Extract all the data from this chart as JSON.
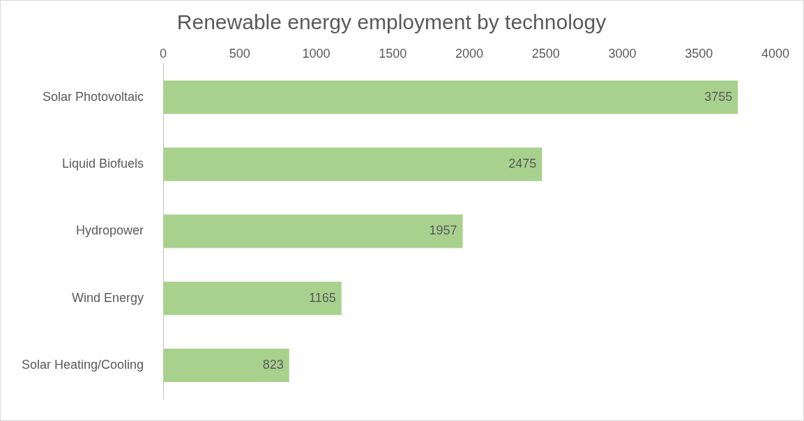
{
  "chart_data": {
    "type": "bar",
    "orientation": "horizontal",
    "title": "Renewable energy employment by technology",
    "categories": [
      "Solar Photovoltaic",
      "Liquid Biofuels",
      "Hydropower",
      "Wind Energy",
      "Solar Heating/Cooling"
    ],
    "values": [
      3755,
      2475,
      1957,
      1165,
      823
    ],
    "color": "#a9d18e",
    "xlim": [
      0,
      4000
    ],
    "xticks": [
      0,
      500,
      1000,
      1500,
      2000,
      2500,
      3000,
      3500,
      4000
    ],
    "grid": false,
    "data_labels": true
  }
}
